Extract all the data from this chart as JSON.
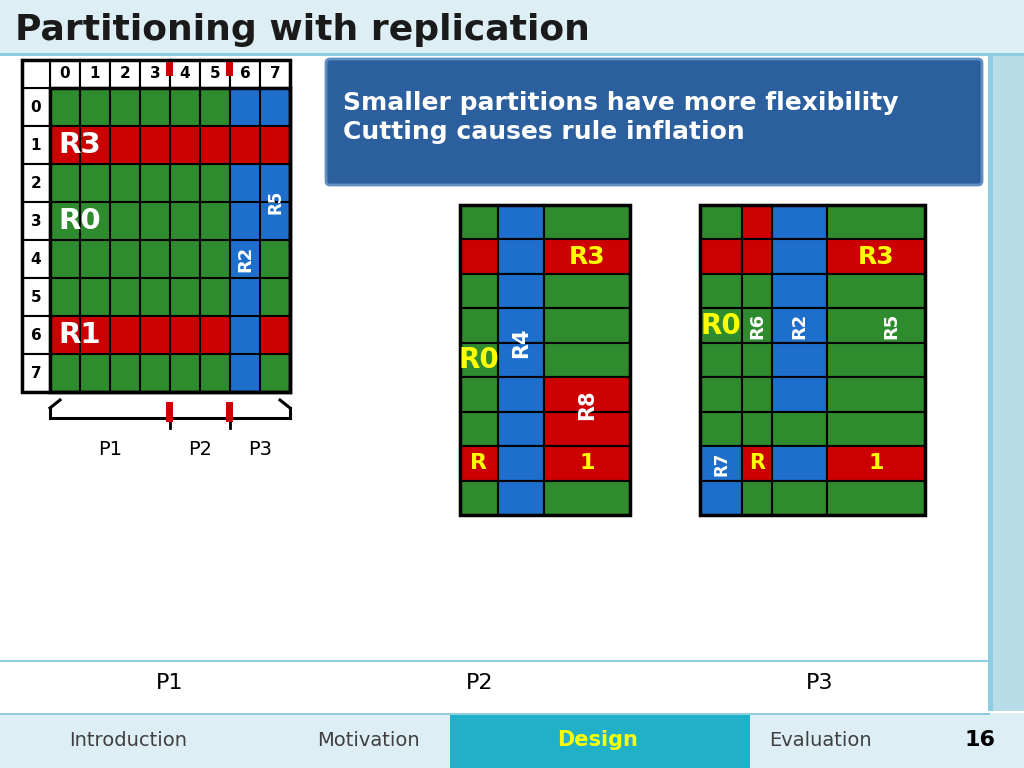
{
  "title": "Partitioning with replication",
  "bg_color": "#ffffff",
  "title_color": "#1a1a1a",
  "green": "#2e8b2e",
  "red": "#cc0000",
  "blue": "#1e6fcc",
  "yellow": "#ffff00",
  "white": "#ffffff",
  "black": "#000000",
  "info_box_text_line1": "Smaller partitions have more flexibility",
  "info_box_text_line2": "Cutting causes rule inflation",
  "info_box_bg": "#2b5f9e",
  "nav_bar_bg": "#20b0c8",
  "nav_items": [
    "Introduction",
    "Motivation",
    "Design",
    "Evaluation",
    "16"
  ],
  "nav_active": 2
}
